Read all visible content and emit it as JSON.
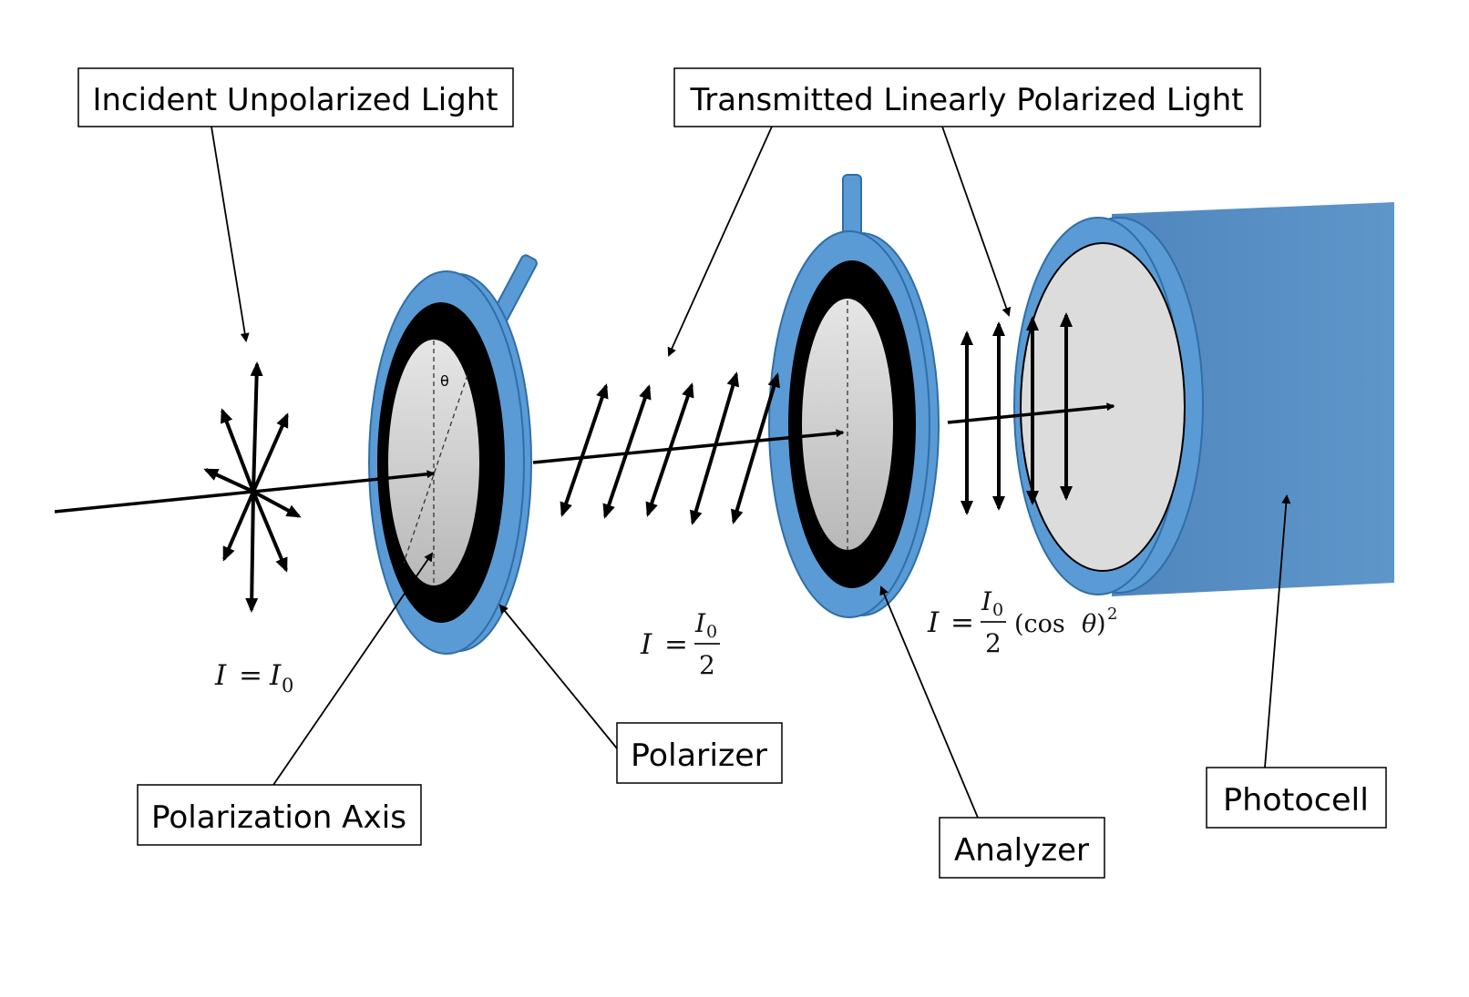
{
  "labels": {
    "incident": "Incident Unpolarized Light",
    "transmitted": "Transmitted Linearly Polarized Light",
    "polarizer": "Polarizer",
    "polarization_axis": "Polarization Axis",
    "analyzer": "Analyzer",
    "photocell": "Photocell"
  },
  "angle_symbol": "θ",
  "equations": {
    "eq1": {
      "lhs": "I",
      "eq": "=",
      "rhs_base": "I",
      "rhs_sub": "0"
    },
    "eq2": {
      "lhs": "I",
      "eq": "=",
      "num_base": "I",
      "num_sub": "0",
      "den": "2"
    },
    "eq3": {
      "lhs": "I",
      "eq": "=",
      "num_base": "I",
      "num_sub": "0",
      "den": "2",
      "open": "(cos ",
      "theta": "θ",
      "close": ")",
      "exp": "2"
    }
  },
  "colors": {
    "ring": "#5b9bd5",
    "ring_stroke": "#2f6ea8",
    "lens_light": "#dcdcdc",
    "lens_dark": "#b9b9b9",
    "band": "#000000",
    "photocell_body": "#5b93c8"
  }
}
